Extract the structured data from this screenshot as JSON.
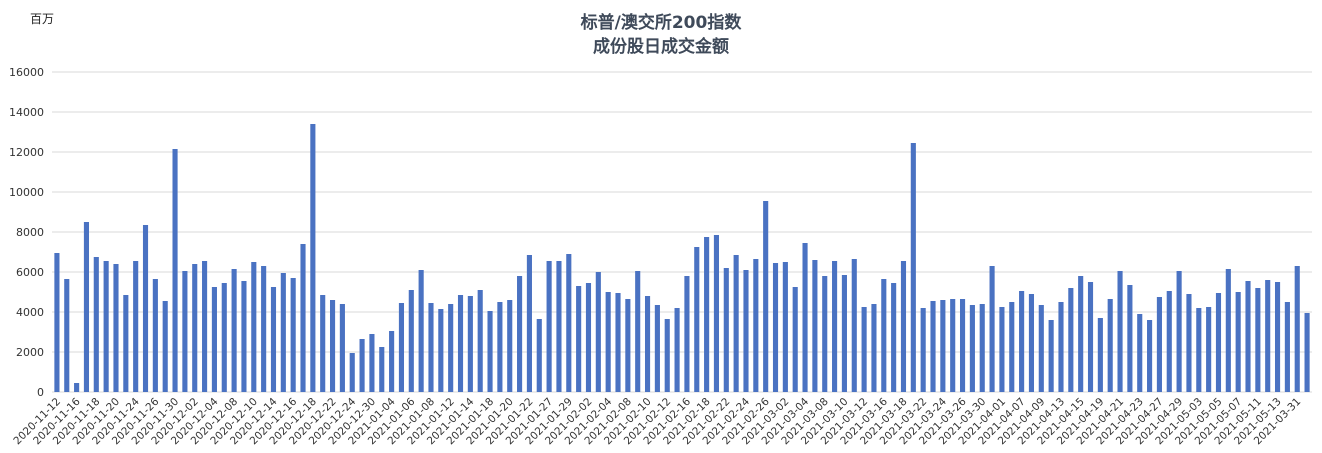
{
  "chart_data": {
    "type": "bar",
    "title_lines": [
      "标普/澳交所200指数",
      "成份股日成交金额"
    ],
    "unit_label": "百万",
    "ylim": [
      0,
      16000
    ],
    "yticks": [
      0,
      2000,
      4000,
      6000,
      8000,
      10000,
      12000,
      14000,
      16000
    ],
    "grid": true,
    "bar_color": "#4a72c2",
    "grid_color": "#d9d9d9",
    "tick_labels": [
      "2020-11-12",
      "2020-11-16",
      "2020-11-18",
      "2020-11-20",
      "2020-11-24",
      "2020-11-26",
      "2020-11-30",
      "2020-12-02",
      "2020-12-04",
      "2020-12-08",
      "2020-12-10",
      "2020-12-14",
      "2020-12-16",
      "2020-12-18",
      "2020-12-22",
      "2020-12-24",
      "2020-12-30",
      "2021-01-04",
      "2021-01-06",
      "2021-01-08",
      "2021-01-12",
      "2021-01-14",
      "2021-01-18",
      "2021-01-20",
      "2021-01-22",
      "2021-01-27",
      "2021-01-29",
      "2021-02-02",
      "2021-02-04",
      "2021-02-08",
      "2021-02-10",
      "2021-02-12",
      "2021-02-16",
      "2021-02-18",
      "2021-02-22",
      "2021-02-24",
      "2021-02-26",
      "2021-03-02",
      "2021-03-04",
      "2021-03-08",
      "2021-03-10",
      "2021-03-12",
      "2021-03-16",
      "2021-03-18",
      "2021-03-22",
      "2021-03-24",
      "2021-03-26",
      "2021-03-30",
      "2021-04-01",
      "2021-04-07",
      "2021-04-09",
      "2021-04-13",
      "2021-04-15",
      "2021-04-19",
      "2021-04-21",
      "2021-04-23",
      "2021-04-27",
      "2021-04-29",
      "2021-05-03",
      "2021-05-05",
      "2021-05-07",
      "2021-05-11",
      "2021-05-13",
      "2021-03-31"
    ],
    "values": [
      6950,
      5650,
      450,
      8500,
      6750,
      6550,
      6400,
      4850,
      6550,
      8350,
      5650,
      4550,
      12150,
      6050,
      6400,
      6550,
      5250,
      5450,
      6150,
      5550,
      6500,
      6300,
      5250,
      5950,
      5700,
      7400,
      13400,
      4850,
      4600,
      4400,
      1950,
      2650,
      2900,
      2250,
      3050,
      4450,
      5100,
      6100,
      4450,
      4150,
      4400,
      4850,
      4800,
      5100,
      4050,
      4500,
      4600,
      5800,
      6850,
      3650,
      6550,
      6550,
      6900,
      5300,
      5450,
      6000,
      5000,
      4950,
      4650,
      6050,
      4800,
      4350,
      3650,
      4200,
      5800,
      7250,
      7750,
      7850,
      6200,
      6850,
      6100,
      6650,
      9550,
      6450,
      6500,
      5250,
      7450,
      6600,
      5800,
      6550,
      5850,
      6650,
      4250,
      4400,
      5650,
      5450,
      6550,
      12450,
      4200,
      4550,
      4600,
      4650,
      4650,
      4350,
      4400,
      6300,
      4250,
      4500,
      5050,
      4900,
      4350,
      3600,
      4500,
      5200,
      5800,
      5500,
      3700,
      4650,
      6050,
      5350,
      3900,
      3600,
      4750,
      5050,
      6050,
      4900,
      4200,
      4250,
      4950,
      6150,
      5000,
      5550,
      5200,
      5600,
      5500,
      4500,
      6300,
      3950
    ]
  }
}
